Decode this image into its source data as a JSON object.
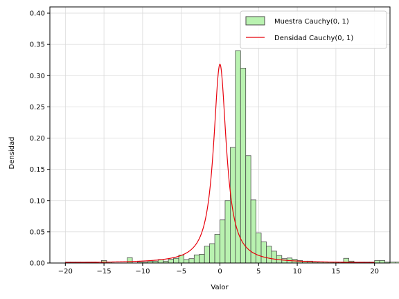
{
  "chart_data": {
    "type": "bar",
    "title": "",
    "xlabel": "Valor",
    "ylabel": "Densidad",
    "xlim": [
      -22,
      22
    ],
    "ylim": [
      0,
      0.41
    ],
    "xticks": [
      -20,
      -15,
      -10,
      -5,
      0,
      5,
      10,
      15,
      20
    ],
    "yticks": [
      0.0,
      0.05,
      0.1,
      0.15,
      0.2,
      0.25,
      0.3,
      0.35,
      0.4
    ],
    "xtick_labels": [
      "−20",
      "−15",
      "−10",
      "−5",
      "0",
      "5",
      "10",
      "15",
      "20"
    ],
    "ytick_labels": [
      "0.00",
      "0.05",
      "0.10",
      "0.15",
      "0.20",
      "0.25",
      "0.30",
      "0.35",
      "0.40"
    ],
    "grid": true,
    "legend_position": "top-right",
    "colors": {
      "hist_fill": "#b9f2b0",
      "hist_edge": "#4a4a4a",
      "line": "#e8000b",
      "grid": "#d9d9d9"
    },
    "series": [
      {
        "name": "Muestra Cauchy(0, 1)",
        "kind": "histogram",
        "bin_start": -20,
        "bin_width": 0.6667,
        "values": [
          0.0015,
          0.0015,
          0.0015,
          0.0015,
          0.0015,
          0.0015,
          0.0,
          0.004,
          0.0015,
          0.0,
          0.0,
          0.0,
          0.0085,
          0.0,
          0.0015,
          0.0015,
          0.003,
          0.003,
          0.0055,
          0.003,
          0.006,
          0.0075,
          0.0125,
          0.0055,
          0.007,
          0.013,
          0.014,
          0.027,
          0.031,
          0.046,
          0.069,
          0.1,
          0.185,
          0.34,
          0.312,
          0.172,
          0.101,
          0.048,
          0.034,
          0.027,
          0.019,
          0.012,
          0.007,
          0.008,
          0.006,
          0.004,
          0.003,
          0.003,
          0.0015,
          0.0015,
          0.0015,
          0.0015,
          0.0015,
          0.0015,
          0.0075,
          0.003,
          0.0015,
          0.0015,
          0.0015,
          0.0015,
          0.004,
          0.004,
          0.0015,
          0.0015,
          0.0015,
          0.0015,
          0.0015,
          0.0015,
          0.0015,
          0.0015
        ]
      },
      {
        "name": "Densidad Cauchy(0, 1)",
        "kind": "line",
        "function": "cauchy_pdf",
        "x0": 0,
        "gamma": 1,
        "x_range": [
          -20,
          20
        ]
      }
    ]
  }
}
